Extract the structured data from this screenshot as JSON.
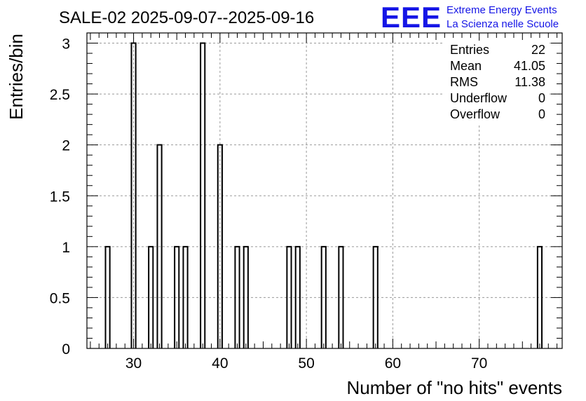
{
  "chart_data": {
    "type": "bar",
    "title": "SALE-02 2025-09-07--2025-09-16",
    "xlabel": "Number of \"no hits\" events",
    "ylabel": "Entries/bin",
    "xlim": [
      24.6,
      79.6
    ],
    "ylim": [
      0,
      3.1
    ],
    "bin_width": 0.5,
    "x_ticks": [
      30,
      40,
      50,
      60,
      70
    ],
    "y_ticks": [
      0,
      0.5,
      1,
      1.5,
      2,
      2.5,
      3
    ],
    "grid": true,
    "bins": [
      {
        "x": 27,
        "value": 1
      },
      {
        "x": 30,
        "value": 3
      },
      {
        "x": 32,
        "value": 1
      },
      {
        "x": 33,
        "value": 2
      },
      {
        "x": 35,
        "value": 1
      },
      {
        "x": 36,
        "value": 1
      },
      {
        "x": 38,
        "value": 3
      },
      {
        "x": 40,
        "value": 2
      },
      {
        "x": 42,
        "value": 1
      },
      {
        "x": 43,
        "value": 1
      },
      {
        "x": 48,
        "value": 1
      },
      {
        "x": 49,
        "value": 1
      },
      {
        "x": 52,
        "value": 1
      },
      {
        "x": 54,
        "value": 1
      },
      {
        "x": 58,
        "value": 1
      },
      {
        "x": 77,
        "value": 1
      }
    ],
    "stats": [
      {
        "label": "Entries",
        "value": "22"
      },
      {
        "label": "Mean",
        "value": "41.05"
      },
      {
        "label": "RMS",
        "value": "11.38"
      },
      {
        "label": "Underflow",
        "value": "0"
      },
      {
        "label": "Overflow",
        "value": "0"
      }
    ],
    "colors": {
      "line": "#000000",
      "grid": "#999999",
      "logo": "#1515e6"
    }
  },
  "logo": {
    "mark": "EEE",
    "line1": "Extreme Energy Events",
    "line2": "La Scienza nelle Scuole"
  }
}
